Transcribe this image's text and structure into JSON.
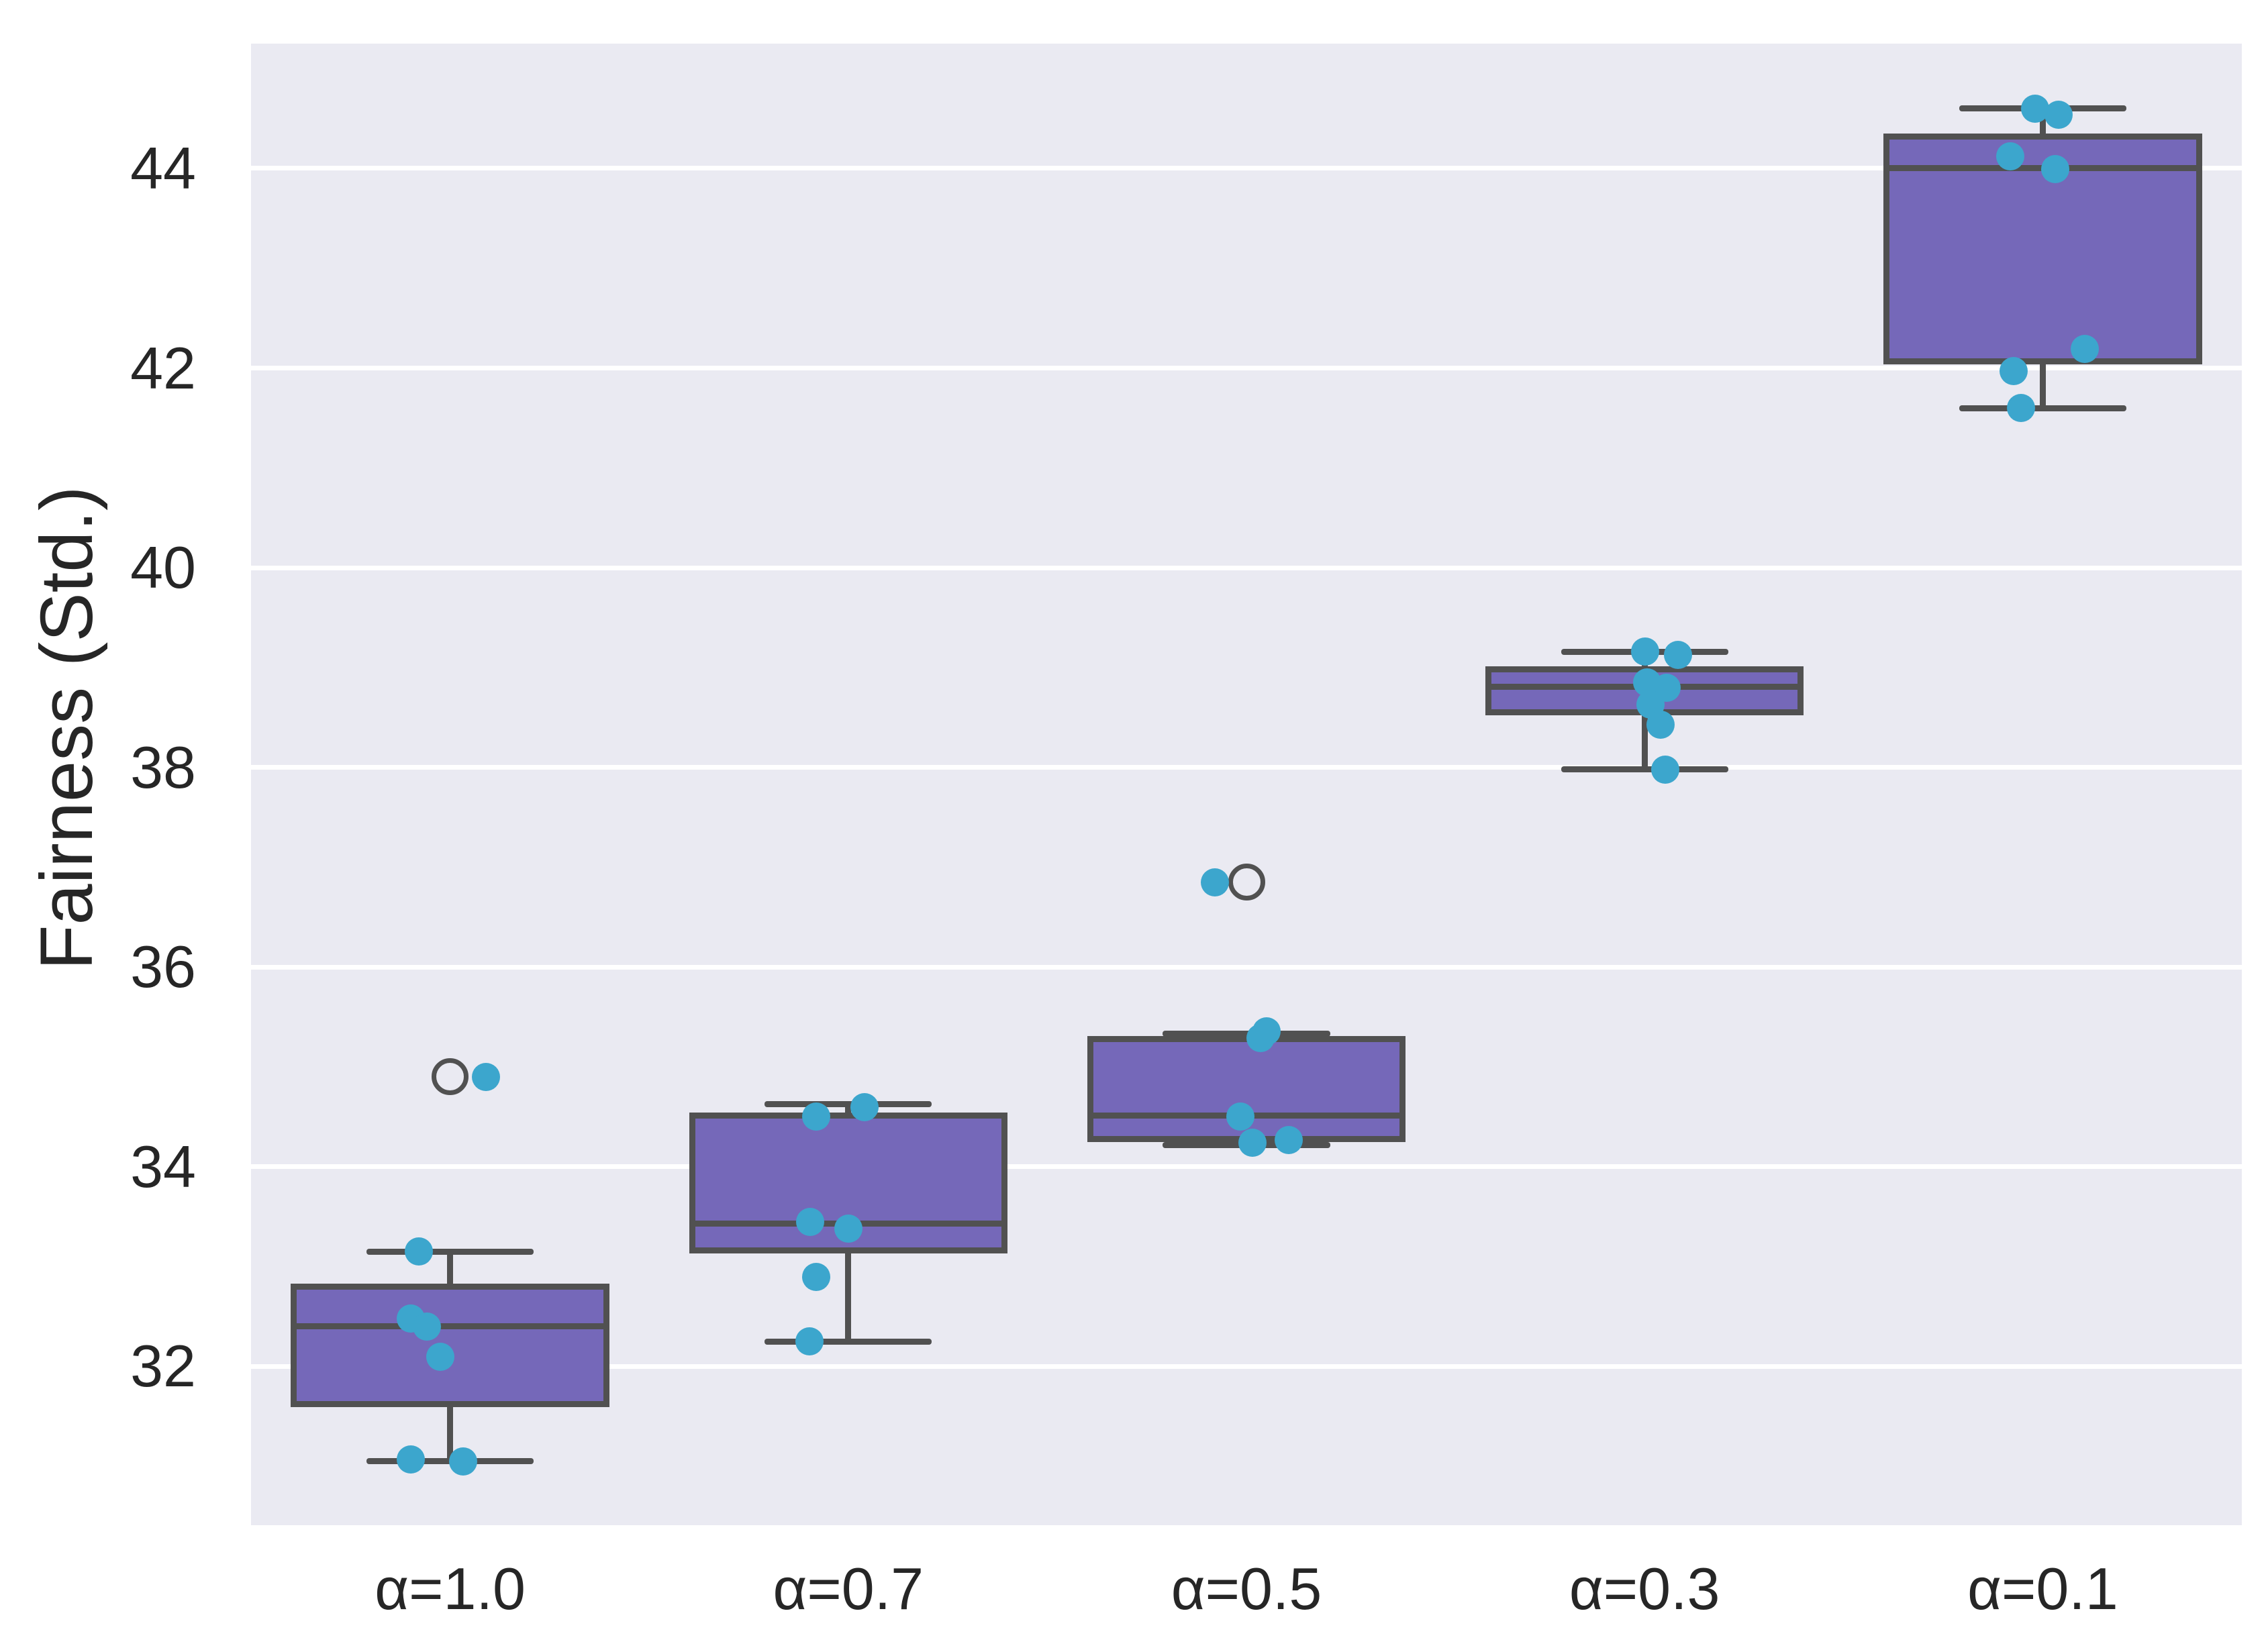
{
  "chart_data": {
    "type": "box",
    "title": "",
    "xlabel": "",
    "ylabel": "Fairness (Std.)",
    "categories": [
      "α=1.0",
      "α=0.7",
      "α=0.5",
      "α=0.3",
      "α=0.1"
    ],
    "yticks": [
      32,
      34,
      36,
      38,
      40,
      42,
      44
    ],
    "ylim": [
      30.41,
      45.25
    ],
    "grid": "horizontal-white-gridlines",
    "legend": "none",
    "colors": {
      "box_fill": "#7568B9",
      "box_edge": "#515151",
      "strip_point": "#3CA6CD",
      "axes_background": "#EAEAF2",
      "figure_background": "#FFFFFF",
      "gridline": "#FFFFFF",
      "text": "#262626"
    },
    "boxes": [
      {
        "category": "α=1.0",
        "whisker_low": 31.05,
        "q1": 31.62,
        "median": 32.4,
        "q3": 32.8,
        "whisker_high": 33.15,
        "outliers": [
          34.9
        ],
        "points": [
          {
            "v": 34.9,
            "dx": 0.09
          },
          {
            "v": 33.15,
            "dx": -0.078
          },
          {
            "v": 32.48,
            "dx": -0.098
          },
          {
            "v": 32.4,
            "dx": -0.059
          },
          {
            "v": 32.1,
            "dx": -0.024
          },
          {
            "v": 31.07,
            "dx": -0.098
          },
          {
            "v": 31.05,
            "dx": 0.032
          }
        ]
      },
      {
        "category": "α=0.7",
        "whisker_low": 32.25,
        "q1": 33.16,
        "median": 33.43,
        "q3": 34.51,
        "whisker_high": 34.63,
        "outliers": [],
        "points": [
          {
            "v": 34.6,
            "dx": 0.04
          },
          {
            "v": 34.5,
            "dx": -0.08
          },
          {
            "v": 33.45,
            "dx": -0.095
          },
          {
            "v": 33.38,
            "dx": 0.0
          },
          {
            "v": 32.9,
            "dx": -0.081
          },
          {
            "v": 32.25,
            "dx": -0.098
          }
        ]
      },
      {
        "category": "α=0.5",
        "whisker_low": 34.22,
        "q1": 34.28,
        "median": 34.51,
        "q3": 35.28,
        "whisker_high": 35.33,
        "outliers": [
          36.85
        ],
        "points": [
          {
            "v": 36.85,
            "dx": -0.08
          },
          {
            "v": 35.36,
            "dx": 0.05
          },
          {
            "v": 35.29,
            "dx": 0.035
          },
          {
            "v": 34.5,
            "dx": -0.015
          },
          {
            "v": 34.24,
            "dx": 0.015
          },
          {
            "v": 34.27,
            "dx": 0.106
          }
        ]
      },
      {
        "category": "α=0.3",
        "whisker_low": 37.98,
        "q1": 38.55,
        "median": 38.81,
        "q3": 38.98,
        "whisker_high": 39.16,
        "outliers": [],
        "points": [
          {
            "v": 39.16,
            "dx": 0.002
          },
          {
            "v": 39.13,
            "dx": 0.084
          },
          {
            "v": 38.85,
            "dx": 0.007
          },
          {
            "v": 38.8,
            "dx": 0.056
          },
          {
            "v": 38.63,
            "dx": 0.014
          },
          {
            "v": 38.43,
            "dx": 0.04
          },
          {
            "v": 37.98,
            "dx": 0.052
          }
        ]
      },
      {
        "category": "α=0.1",
        "whisker_low": 41.6,
        "q1": 42.07,
        "median": 44.0,
        "q3": 44.32,
        "whisker_high": 44.6,
        "outliers": [],
        "points": [
          {
            "v": 44.6,
            "dx": -0.02
          },
          {
            "v": 44.54,
            "dx": 0.04
          },
          {
            "v": 44.12,
            "dx": -0.081
          },
          {
            "v": 43.99,
            "dx": 0.032
          },
          {
            "v": 42.19,
            "dx": 0.106
          },
          {
            "v": 41.97,
            "dx": -0.073
          },
          {
            "v": 41.6,
            "dx": -0.054
          }
        ]
      }
    ]
  }
}
